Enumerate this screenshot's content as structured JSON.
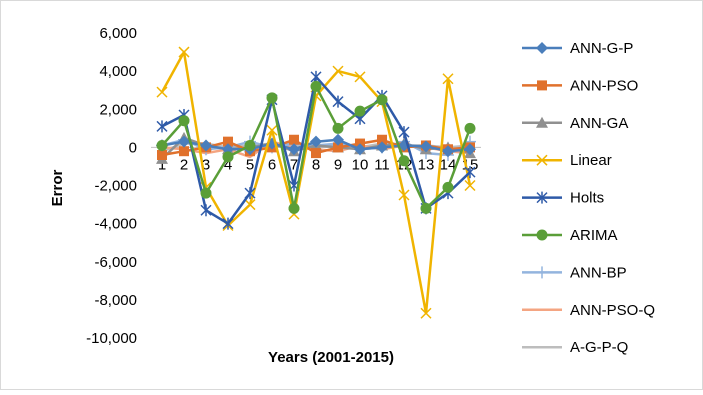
{
  "chart_data": {
    "type": "line",
    "title": "",
    "xlabel": "Years (2001-2015)",
    "ylabel": "Error",
    "ylim": [
      -10000,
      6000
    ],
    "yticks": [
      6000,
      4000,
      2000,
      0,
      -2000,
      -4000,
      -6000,
      -8000,
      -10000
    ],
    "ytick_labels": [
      "6,000",
      "4,000",
      "2,000",
      "0",
      "-2,000",
      "-4,000",
      "-6,000",
      "-8,000",
      "-10,000"
    ],
    "categories": [
      "1",
      "2",
      "3",
      "4",
      "5",
      "6",
      "7",
      "8",
      "9",
      "10",
      "11",
      "12",
      "13",
      "14",
      "15"
    ],
    "grid": false,
    "legend_position": "right",
    "series": [
      {
        "name": "ANN-G-P",
        "color": "#4a7ebb",
        "marker": "diamond",
        "values": [
          100,
          300,
          100,
          -100,
          -100,
          200,
          -100,
          300,
          400,
          -100,
          0,
          100,
          50,
          -200,
          -100
        ]
      },
      {
        "name": "ANN-PSO",
        "color": "#e0712c",
        "marker": "square",
        "values": [
          -400,
          -200,
          0,
          300,
          -200,
          0,
          400,
          -300,
          0,
          200,
          400,
          0,
          100,
          -100,
          0
        ]
      },
      {
        "name": "ANN-GA",
        "color": "#909090",
        "marker": "triangle",
        "values": [
          -600,
          500,
          100,
          -100,
          0,
          200,
          -200,
          100,
          0,
          -100,
          100,
          200,
          -100,
          0,
          -300
        ]
      },
      {
        "name": "Linear",
        "color": "#f0b400",
        "marker": "x",
        "values": [
          2900,
          5000,
          -2100,
          -4100,
          -3000,
          900,
          -3500,
          2700,
          4000,
          3700,
          2400,
          -2500,
          -8700,
          3600,
          -2000
        ]
      },
      {
        "name": "Holts",
        "color": "#2e5aa8",
        "marker": "star",
        "values": [
          1100,
          1700,
          -3300,
          -4000,
          -2400,
          2500,
          -2000,
          3700,
          2400,
          1500,
          2700,
          800,
          -3200,
          -2400,
          -1300
        ]
      },
      {
        "name": "ARIMA",
        "color": "#5a9e38",
        "marker": "circle",
        "values": [
          100,
          1400,
          -2400,
          -500,
          100,
          2600,
          -3200,
          3200,
          1000,
          1900,
          2500,
          -700,
          -3200,
          -2100,
          1000
        ]
      },
      {
        "name": "ANN-BP",
        "color": "#93b4de",
        "marker": "plus",
        "values": [
          100,
          400,
          -100,
          0,
          300,
          0,
          200,
          100,
          200,
          -100,
          0,
          300,
          -300,
          -400,
          300
        ]
      },
      {
        "name": "ANN-PSO-Q",
        "color": "#f4a582",
        "marker": "none",
        "values": [
          0,
          -100,
          -300,
          -100,
          -500,
          300,
          0,
          -100,
          -200,
          100,
          -100,
          100,
          0,
          -200,
          -300
        ]
      },
      {
        "name": "A-G-P-Q",
        "color": "#bdbdbd",
        "marker": "none",
        "values": [
          -200,
          200,
          200,
          0,
          100,
          200,
          100,
          0,
          100,
          0,
          200,
          100,
          100,
          0,
          100
        ]
      }
    ]
  }
}
